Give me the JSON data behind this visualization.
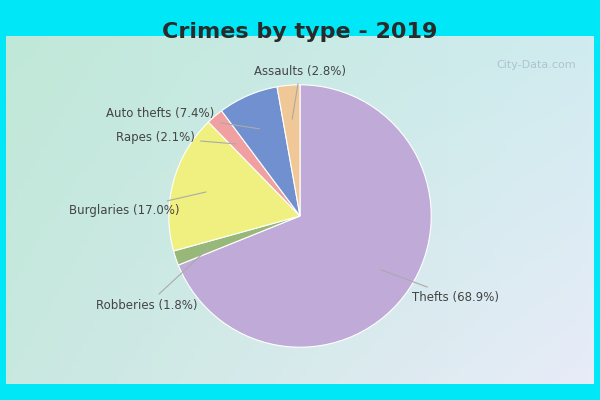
{
  "title": "Crimes by type - 2019",
  "title_fontsize": 16,
  "title_fontweight": "bold",
  "slices": [
    {
      "label": "Thefts (68.9%)",
      "value": 68.9,
      "color": "#c0aad8"
    },
    {
      "label": "Robberies (1.8%)",
      "value": 1.8,
      "color": "#98b87a"
    },
    {
      "label": "Burglaries (17.0%)",
      "value": 17.0,
      "color": "#f0f080"
    },
    {
      "label": "Rapes (2.1%)",
      "value": 2.1,
      "color": "#f0a0a0"
    },
    {
      "label": "Auto thefts (7.4%)",
      "value": 7.4,
      "color": "#7090d0"
    },
    {
      "label": "Assaults (2.8%)",
      "value": 2.8,
      "color": "#f0c898"
    }
  ],
  "bg_outer_color": "#00e8f8",
  "bg_inner_tl": "#b8e8d8",
  "bg_inner_br": "#dde8f8",
  "label_fontsize": 8.5,
  "label_color": "#444444",
  "startangle": 90,
  "figsize": [
    6.0,
    4.0
  ],
  "dpi": 100,
  "watermark": "City-Data.com"
}
